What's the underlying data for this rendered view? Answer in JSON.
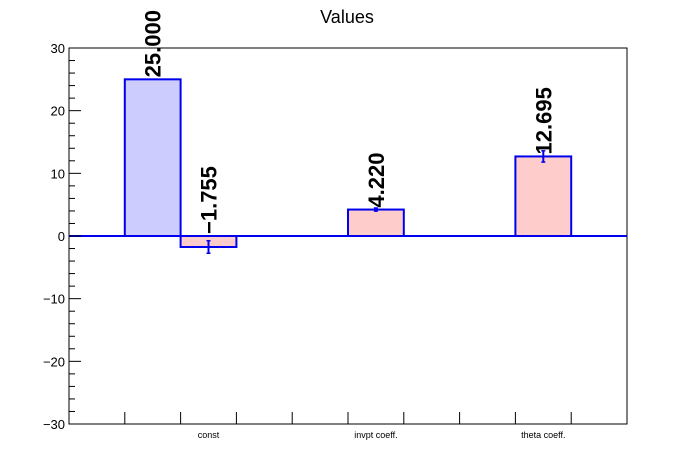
{
  "chart_data": {
    "type": "bar",
    "title": "Values",
    "categories": [
      "const",
      "invpt coeff.",
      "theta coeff."
    ],
    "ylim": [
      -30,
      30
    ],
    "yticks": [
      -30,
      -20,
      -10,
      0,
      10,
      20,
      30
    ],
    "ytick_labels": [
      "−30",
      "−20",
      "−10",
      "0",
      "10",
      "20",
      "30"
    ],
    "grid": false,
    "bars": [
      {
        "slot": 1,
        "value": 25.0,
        "error": 0.0,
        "label": "25.000",
        "fill": "#ccccff"
      },
      {
        "slot": 2,
        "value": -1.755,
        "error": 1.0,
        "label": "−1.755",
        "fill": "#ffcccc"
      },
      {
        "slot": 5,
        "value": 4.22,
        "error": 0.25,
        "label": "4.220",
        "fill": "#ffcccc"
      },
      {
        "slot": 8,
        "value": 12.695,
        "error": 0.9,
        "label": "12.695",
        "fill": "#ffcccc"
      }
    ],
    "category_slots": [
      2,
      5,
      8
    ],
    "colors": {
      "bar_stroke": "#0000ee",
      "zero_line": "#0000ee",
      "error_bar": "#0000ee",
      "axis": "#000000"
    }
  }
}
